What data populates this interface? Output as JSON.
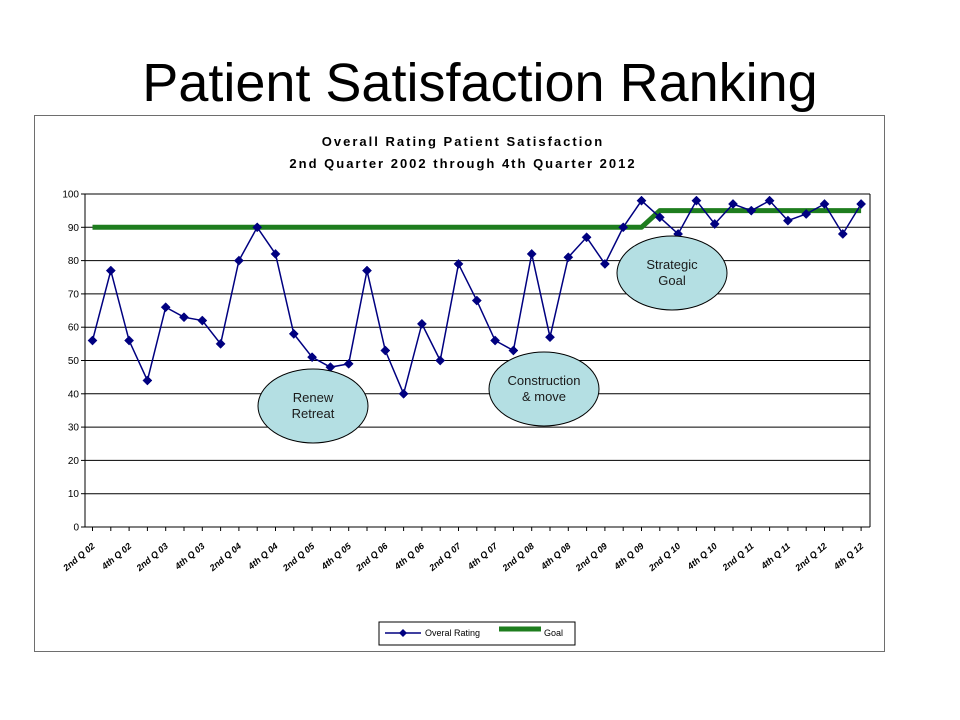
{
  "slide_title": "Patient Satisfaction Ranking",
  "chart_data": {
    "type": "line",
    "title": "Overall Rating Patient Satisfaction",
    "subtitle": "2nd Quarter 2002 through 4th Quarter 2012",
    "ylim": [
      0,
      100
    ],
    "yticks": [
      0,
      10,
      20,
      30,
      40,
      50,
      60,
      70,
      80,
      90,
      100
    ],
    "grid": true,
    "legend_placement": "bottom",
    "x_count": 43,
    "x_tick_labels": [
      "2nd Q 02",
      "4th Q 02",
      "2nd Q 03",
      "4th Q 03",
      "2nd Q 04",
      "4th Q 04",
      "2nd Q 05",
      "4th Q 05",
      "2nd Q 06",
      "4th Q 06",
      "2nd Q 07",
      "4th Q 07",
      "2nd Q 08",
      "4th Q 08",
      "2nd Q 09",
      "4th Q 09",
      "2nd Q 10",
      "4th Q 10",
      "2nd Q 11",
      "4th Q 11",
      "2nd Q 12",
      "4th Q 12"
    ],
    "series": [
      {
        "name": "Overal Rating",
        "color": "#000080",
        "marker": "diamond",
        "values": [
          56,
          77,
          56,
          44,
          66,
          63,
          62,
          55,
          80,
          90,
          82,
          58,
          51,
          48,
          49,
          77,
          53,
          40,
          61,
          50,
          79,
          68,
          56,
          53,
          82,
          57,
          81,
          87,
          79,
          90,
          98,
          93,
          88,
          98,
          91,
          97,
          95,
          98,
          92,
          94,
          97,
          88,
          97
        ]
      },
      {
        "name": "Goal",
        "color": "#1e7d1e",
        "marker": "none",
        "values": [
          90,
          90,
          90,
          90,
          90,
          90,
          90,
          90,
          90,
          90,
          90,
          90,
          90,
          90,
          90,
          90,
          90,
          90,
          90,
          90,
          90,
          90,
          90,
          90,
          90,
          90,
          90,
          90,
          90,
          90,
          90,
          95,
          95,
          95,
          95,
          95,
          95,
          95,
          95,
          95,
          95,
          95,
          95
        ]
      }
    ],
    "annotations": [
      {
        "lines": [
          "Renew",
          "Retreat"
        ]
      },
      {
        "lines": [
          "Construction",
          "& move"
        ]
      },
      {
        "lines": [
          "Strategic",
          "Goal"
        ]
      }
    ]
  }
}
